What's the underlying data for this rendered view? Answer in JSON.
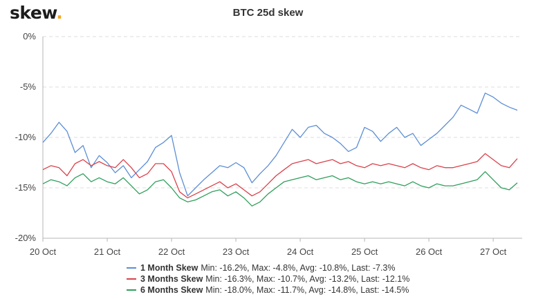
{
  "header": {
    "logo_text": "skew",
    "logo_dot": "."
  },
  "chart_data": {
    "type": "line",
    "title": "BTC 25d skew",
    "xlabel": "",
    "ylabel": "",
    "x_ticks": [
      "20 Oct",
      "21 Oct",
      "22 Oct",
      "23 Oct",
      "24 Oct",
      "25 Oct",
      "26 Oct",
      "27 Oct"
    ],
    "y_ticks": [
      "0%",
      "-5%",
      "-10%",
      "-15%",
      "-20%"
    ],
    "ylim": [
      -20,
      0
    ],
    "xlim_days": [
      0,
      7.45
    ],
    "grid": "horizontal dashed",
    "legend_position": "bottom",
    "series": [
      {
        "name": "1 Month Skew",
        "color": "#5b8dd6",
        "stats": "Min: -16.2%, Max: -4.8%, Avg: -10.8%, Last: -7.3%",
        "points": [
          [
            "20 Oct 00:00",
            -10.5
          ],
          [
            "20 Oct 03:00",
            -9.6
          ],
          [
            "20 Oct 06:00",
            -8.5
          ],
          [
            "20 Oct 09:00",
            -9.4
          ],
          [
            "20 Oct 12:00",
            -11.5
          ],
          [
            "20 Oct 15:00",
            -10.8
          ],
          [
            "20 Oct 18:00",
            -13.0
          ],
          [
            "20 Oct 21:00",
            -11.8
          ],
          [
            "21 Oct 00:00",
            -12.5
          ],
          [
            "21 Oct 03:00",
            -13.5
          ],
          [
            "21 Oct 06:00",
            -12.8
          ],
          [
            "21 Oct 09:00",
            -14.0
          ],
          [
            "21 Oct 12:00",
            -13.2
          ],
          [
            "21 Oct 15:00",
            -12.4
          ],
          [
            "21 Oct 18:00",
            -11.0
          ],
          [
            "21 Oct 21:00",
            -10.5
          ],
          [
            "22 Oct 00:00",
            -9.8
          ],
          [
            "22 Oct 03:00",
            -13.5
          ],
          [
            "22 Oct 06:00",
            -15.8
          ],
          [
            "22 Oct 09:00",
            -15.0
          ],
          [
            "22 Oct 12:00",
            -14.2
          ],
          [
            "22 Oct 15:00",
            -13.5
          ],
          [
            "22 Oct 18:00",
            -12.8
          ],
          [
            "22 Oct 21:00",
            -13.0
          ],
          [
            "23 Oct 00:00",
            -12.5
          ],
          [
            "23 Oct 03:00",
            -13.0
          ],
          [
            "23 Oct 06:00",
            -14.5
          ],
          [
            "23 Oct 09:00",
            -13.6
          ],
          [
            "23 Oct 12:00",
            -12.8
          ],
          [
            "23 Oct 15:00",
            -11.8
          ],
          [
            "23 Oct 18:00",
            -10.5
          ],
          [
            "23 Oct 21:00",
            -9.2
          ],
          [
            "24 Oct 00:00",
            -10.0
          ],
          [
            "24 Oct 03:00",
            -9.0
          ],
          [
            "24 Oct 06:00",
            -8.8
          ],
          [
            "24 Oct 09:00",
            -9.6
          ],
          [
            "24 Oct 12:00",
            -10.0
          ],
          [
            "24 Oct 15:00",
            -10.6
          ],
          [
            "24 Oct 18:00",
            -11.4
          ],
          [
            "24 Oct 21:00",
            -11.0
          ],
          [
            "25 Oct 00:00",
            -9.0
          ],
          [
            "25 Oct 03:00",
            -9.4
          ],
          [
            "25 Oct 06:00",
            -10.4
          ],
          [
            "25 Oct 09:00",
            -9.6
          ],
          [
            "25 Oct 12:00",
            -9.0
          ],
          [
            "25 Oct 15:00",
            -10.0
          ],
          [
            "25 Oct 18:00",
            -9.6
          ],
          [
            "25 Oct 21:00",
            -10.8
          ],
          [
            "26 Oct 00:00",
            -10.2
          ],
          [
            "26 Oct 03:00",
            -9.6
          ],
          [
            "26 Oct 06:00",
            -8.8
          ],
          [
            "26 Oct 09:00",
            -8.0
          ],
          [
            "26 Oct 12:00",
            -6.8
          ],
          [
            "26 Oct 15:00",
            -7.2
          ],
          [
            "26 Oct 18:00",
            -7.6
          ],
          [
            "26 Oct 21:00",
            -5.6
          ],
          [
            "27 Oct 00:00",
            -6.0
          ],
          [
            "27 Oct 03:00",
            -6.6
          ],
          [
            "27 Oct 06:00",
            -7.0
          ],
          [
            "27 Oct 09:00",
            -7.3
          ]
        ]
      },
      {
        "name": "3 Months Skew",
        "color": "#d9414a",
        "stats": "Min: -16.3%, Max: -10.7%, Avg: -13.2%, Last: -12.1%",
        "points": [
          [
            "20 Oct 00:00",
            -13.2
          ],
          [
            "20 Oct 03:00",
            -12.8
          ],
          [
            "20 Oct 06:00",
            -13.0
          ],
          [
            "20 Oct 09:00",
            -13.8
          ],
          [
            "20 Oct 12:00",
            -12.6
          ],
          [
            "20 Oct 15:00",
            -12.2
          ],
          [
            "20 Oct 18:00",
            -12.8
          ],
          [
            "20 Oct 21:00",
            -12.4
          ],
          [
            "21 Oct 00:00",
            -12.8
          ],
          [
            "21 Oct 03:00",
            -13.0
          ],
          [
            "21 Oct 06:00",
            -12.2
          ],
          [
            "21 Oct 09:00",
            -13.0
          ],
          [
            "21 Oct 12:00",
            -14.0
          ],
          [
            "21 Oct 15:00",
            -13.6
          ],
          [
            "21 Oct 18:00",
            -12.6
          ],
          [
            "21 Oct 21:00",
            -12.6
          ],
          [
            "22 Oct 00:00",
            -13.4
          ],
          [
            "22 Oct 03:00",
            -15.4
          ],
          [
            "22 Oct 06:00",
            -16.0
          ],
          [
            "22 Oct 09:00",
            -15.6
          ],
          [
            "22 Oct 12:00",
            -15.2
          ],
          [
            "22 Oct 15:00",
            -14.8
          ],
          [
            "22 Oct 18:00",
            -14.4
          ],
          [
            "22 Oct 21:00",
            -15.0
          ],
          [
            "23 Oct 00:00",
            -14.6
          ],
          [
            "23 Oct 03:00",
            -15.2
          ],
          [
            "23 Oct 06:00",
            -15.8
          ],
          [
            "23 Oct 09:00",
            -15.4
          ],
          [
            "23 Oct 12:00",
            -14.6
          ],
          [
            "23 Oct 15:00",
            -13.8
          ],
          [
            "23 Oct 18:00",
            -13.2
          ],
          [
            "23 Oct 21:00",
            -12.6
          ],
          [
            "24 Oct 00:00",
            -12.4
          ],
          [
            "24 Oct 03:00",
            -12.2
          ],
          [
            "24 Oct 06:00",
            -12.6
          ],
          [
            "24 Oct 09:00",
            -12.4
          ],
          [
            "24 Oct 12:00",
            -12.2
          ],
          [
            "24 Oct 15:00",
            -12.6
          ],
          [
            "24 Oct 18:00",
            -12.4
          ],
          [
            "24 Oct 21:00",
            -12.8
          ],
          [
            "25 Oct 00:00",
            -13.0
          ],
          [
            "25 Oct 03:00",
            -12.6
          ],
          [
            "25 Oct 06:00",
            -12.8
          ],
          [
            "25 Oct 09:00",
            -12.6
          ],
          [
            "25 Oct 12:00",
            -12.8
          ],
          [
            "25 Oct 15:00",
            -13.0
          ],
          [
            "25 Oct 18:00",
            -12.6
          ],
          [
            "25 Oct 21:00",
            -13.0
          ],
          [
            "26 Oct 00:00",
            -13.2
          ],
          [
            "26 Oct 03:00",
            -12.8
          ],
          [
            "26 Oct 06:00",
            -13.0
          ],
          [
            "26 Oct 09:00",
            -13.0
          ],
          [
            "26 Oct 12:00",
            -12.8
          ],
          [
            "26 Oct 15:00",
            -12.6
          ],
          [
            "26 Oct 18:00",
            -12.4
          ],
          [
            "26 Oct 21:00",
            -11.6
          ],
          [
            "27 Oct 00:00",
            -12.2
          ],
          [
            "27 Oct 03:00",
            -12.8
          ],
          [
            "27 Oct 06:00",
            -13.0
          ],
          [
            "27 Oct 09:00",
            -12.1
          ]
        ]
      },
      {
        "name": "6 Months Skew",
        "color": "#2e9e5b",
        "stats": "Min: -18.0%, Max: -11.7%, Avg: -14.8%, Last: -14.5%",
        "points": [
          [
            "20 Oct 00:00",
            -14.6
          ],
          [
            "20 Oct 03:00",
            -14.2
          ],
          [
            "20 Oct 06:00",
            -14.4
          ],
          [
            "20 Oct 09:00",
            -14.8
          ],
          [
            "20 Oct 12:00",
            -14.0
          ],
          [
            "20 Oct 15:00",
            -13.6
          ],
          [
            "20 Oct 18:00",
            -14.4
          ],
          [
            "20 Oct 21:00",
            -14.0
          ],
          [
            "21 Oct 00:00",
            -14.4
          ],
          [
            "21 Oct 03:00",
            -14.6
          ],
          [
            "21 Oct 06:00",
            -14.0
          ],
          [
            "21 Oct 09:00",
            -14.8
          ],
          [
            "21 Oct 12:00",
            -15.6
          ],
          [
            "21 Oct 15:00",
            -15.2
          ],
          [
            "21 Oct 18:00",
            -14.4
          ],
          [
            "21 Oct 21:00",
            -14.2
          ],
          [
            "22 Oct 00:00",
            -15.0
          ],
          [
            "22 Oct 03:00",
            -16.0
          ],
          [
            "22 Oct 06:00",
            -16.4
          ],
          [
            "22 Oct 09:00",
            -16.2
          ],
          [
            "22 Oct 12:00",
            -15.8
          ],
          [
            "22 Oct 15:00",
            -15.4
          ],
          [
            "22 Oct 18:00",
            -15.2
          ],
          [
            "22 Oct 21:00",
            -15.8
          ],
          [
            "23 Oct 00:00",
            -15.4
          ],
          [
            "23 Oct 03:00",
            -16.0
          ],
          [
            "23 Oct 06:00",
            -16.8
          ],
          [
            "23 Oct 09:00",
            -16.4
          ],
          [
            "23 Oct 12:00",
            -15.6
          ],
          [
            "23 Oct 15:00",
            -15.0
          ],
          [
            "23 Oct 18:00",
            -14.4
          ],
          [
            "23 Oct 21:00",
            -14.2
          ],
          [
            "24 Oct 00:00",
            -14.0
          ],
          [
            "24 Oct 03:00",
            -13.8
          ],
          [
            "24 Oct 06:00",
            -14.2
          ],
          [
            "24 Oct 09:00",
            -14.0
          ],
          [
            "24 Oct 12:00",
            -13.8
          ],
          [
            "24 Oct 15:00",
            -14.2
          ],
          [
            "24 Oct 18:00",
            -14.0
          ],
          [
            "24 Oct 21:00",
            -14.4
          ],
          [
            "25 Oct 00:00",
            -14.6
          ],
          [
            "25 Oct 03:00",
            -14.4
          ],
          [
            "25 Oct 06:00",
            -14.6
          ],
          [
            "25 Oct 09:00",
            -14.4
          ],
          [
            "25 Oct 12:00",
            -14.6
          ],
          [
            "25 Oct 15:00",
            -14.8
          ],
          [
            "25 Oct 18:00",
            -14.4
          ],
          [
            "25 Oct 21:00",
            -14.8
          ],
          [
            "26 Oct 00:00",
            -15.0
          ],
          [
            "26 Oct 03:00",
            -14.6
          ],
          [
            "26 Oct 06:00",
            -14.8
          ],
          [
            "26 Oct 09:00",
            -14.8
          ],
          [
            "26 Oct 12:00",
            -14.6
          ],
          [
            "26 Oct 15:00",
            -14.4
          ],
          [
            "26 Oct 18:00",
            -14.2
          ],
          [
            "26 Oct 21:00",
            -13.4
          ],
          [
            "27 Oct 00:00",
            -14.2
          ],
          [
            "27 Oct 03:00",
            -15.0
          ],
          [
            "27 Oct 06:00",
            -15.2
          ],
          [
            "27 Oct 09:00",
            -14.5
          ]
        ]
      }
    ]
  }
}
